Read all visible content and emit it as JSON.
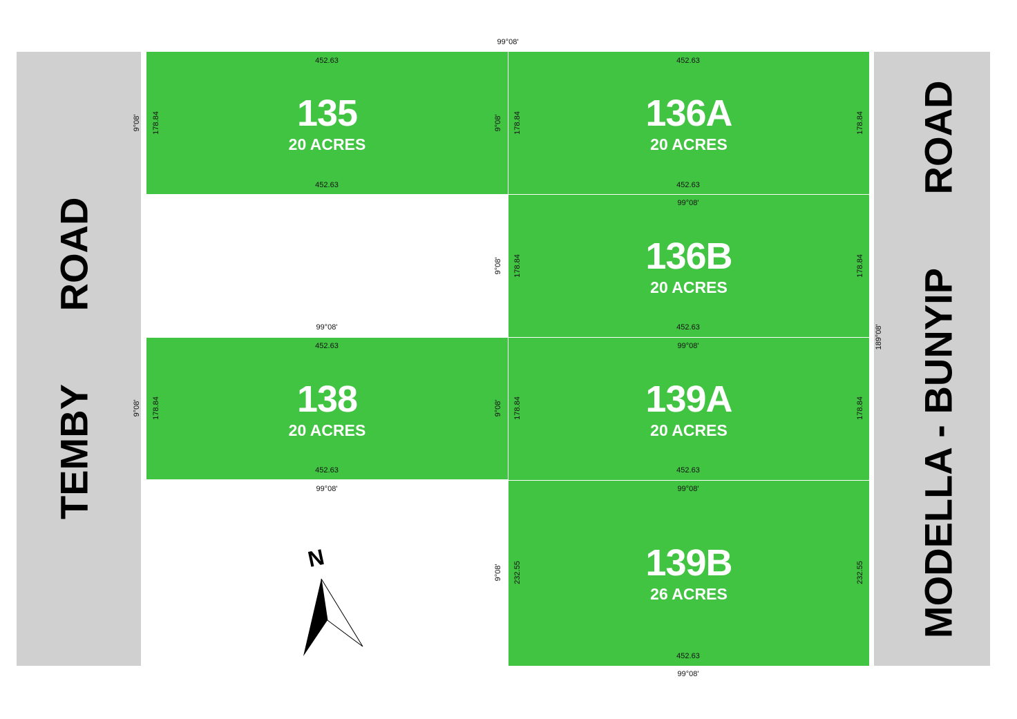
{
  "roads": {
    "west": {
      "name_part1": "TEMBY",
      "name_part2": "ROAD"
    },
    "east": {
      "name_part1": "MODELLA - BUNYIP",
      "name_part2": "ROAD",
      "bearing": "189°08'"
    }
  },
  "bearings": {
    "horizontal": "99°08'",
    "vertical": "9°08'"
  },
  "lots": [
    {
      "number": "135",
      "area": "20 ACRES",
      "top": "452.63",
      "bottom": "452.63",
      "left": "178.84",
      "right": ""
    },
    {
      "number": "136A",
      "area": "20 ACRES",
      "top": "452.63",
      "bottom": "452.63",
      "left": "178.84",
      "right": "178.84"
    },
    {
      "number": "136B",
      "area": "20 ACRES",
      "top": "",
      "bottom": "452.63",
      "left": "178.84",
      "right": "178.84"
    },
    {
      "number": "138",
      "area": "20 ACRES",
      "top": "452.63",
      "bottom": "452.63",
      "left": "178.84",
      "right": ""
    },
    {
      "number": "139A",
      "area": "20 ACRES",
      "top": "",
      "bottom": "452.63",
      "left": "178.84",
      "right": "178.84"
    },
    {
      "number": "139B",
      "area": "26 ACRES",
      "top": "",
      "bottom": "452.63",
      "left": "232.55",
      "right": "232.55"
    }
  ],
  "north_arrow": {
    "label": "N"
  },
  "colors": {
    "lot": "#42c443",
    "road": "#d0d0d0"
  }
}
